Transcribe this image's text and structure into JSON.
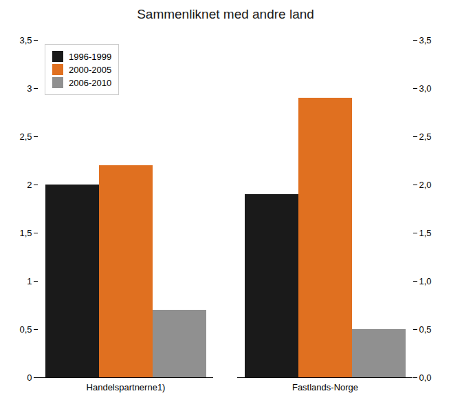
{
  "chart_data": {
    "type": "bar",
    "title": "Sammenliknet med andre land",
    "categories": [
      "Handelspartnerne1)",
      "Fastlands-Norge"
    ],
    "series": [
      {
        "name": "1996-1999",
        "color": "#1a1a1a",
        "values": [
          2.0,
          1.9
        ]
      },
      {
        "name": "2000-2005",
        "color": "#E07020",
        "values": [
          2.2,
          2.9
        ]
      },
      {
        "name": "2006-2010",
        "color": "#909090",
        "values": [
          0.7,
          0.5
        ]
      }
    ],
    "ylim": [
      0,
      3.5
    ],
    "yticks": [
      0,
      {
        "value": 0.5,
        "label": "0,5"
      },
      1,
      {
        "value": 1.5,
        "label": "1,5"
      },
      2,
      {
        "value": 2.5,
        "label": "2,5"
      },
      3,
      {
        "value": 3.5,
        "label": "3,5"
      }
    ],
    "y2lim": [
      0,
      3.5
    ],
    "y2ticks": [
      {
        "value": 0,
        "label": "0,0"
      },
      {
        "value": 0.5,
        "label": "0,5"
      },
      {
        "value": 1.0,
        "label": "1,0"
      },
      {
        "value": 1.5,
        "label": "1,5"
      },
      {
        "value": 2.0,
        "label": "2,0"
      },
      {
        "value": 2.5,
        "label": "2,5"
      },
      {
        "value": 3.0,
        "label": "3,0"
      },
      {
        "value": 3.5,
        "label": "3,5"
      }
    ],
    "grid": false,
    "legend": "upper left"
  }
}
